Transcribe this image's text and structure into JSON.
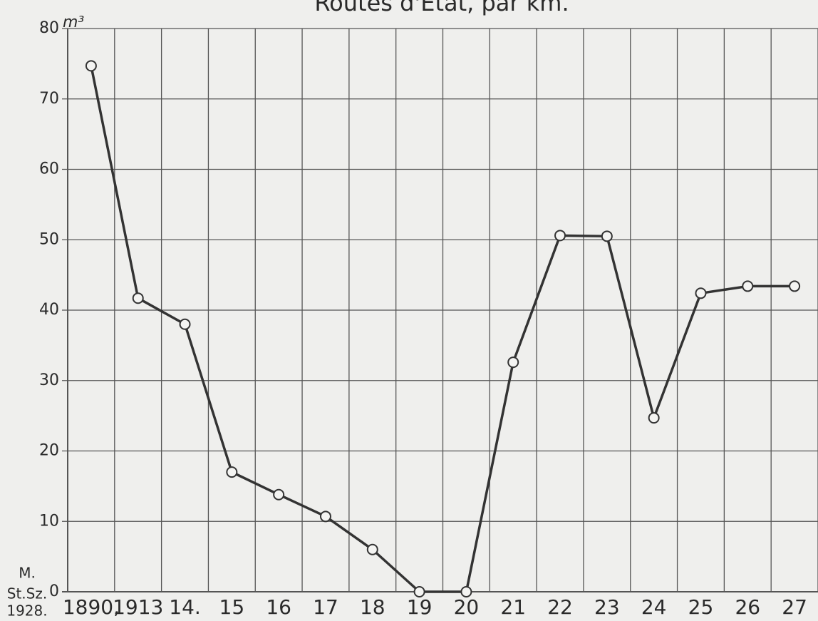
{
  "chart_data": {
    "type": "line",
    "title": "Routes d'Etat, par km.",
    "y_unit": "m³",
    "source": [
      "M.",
      "St.Sz.",
      "1928."
    ],
    "categories": [
      "1890,",
      "1913",
      "14.",
      "15",
      "16",
      "17",
      "18",
      "19",
      "20",
      "21",
      "22",
      "23",
      "24",
      "25",
      "26",
      "27"
    ],
    "series": [
      {
        "name": "Routes d'Etat",
        "color": "#333333",
        "values": [
          74.7,
          41.7,
          38,
          17,
          13.8,
          10.7,
          6,
          0,
          0,
          32.6,
          50.6,
          50.5,
          24.7,
          42.4,
          43.4,
          43.4
        ]
      }
    ],
    "ylim": [
      0,
      80
    ],
    "yticks": [
      0,
      10,
      20,
      30,
      40,
      50,
      60,
      70,
      80
    ],
    "grid": true
  }
}
